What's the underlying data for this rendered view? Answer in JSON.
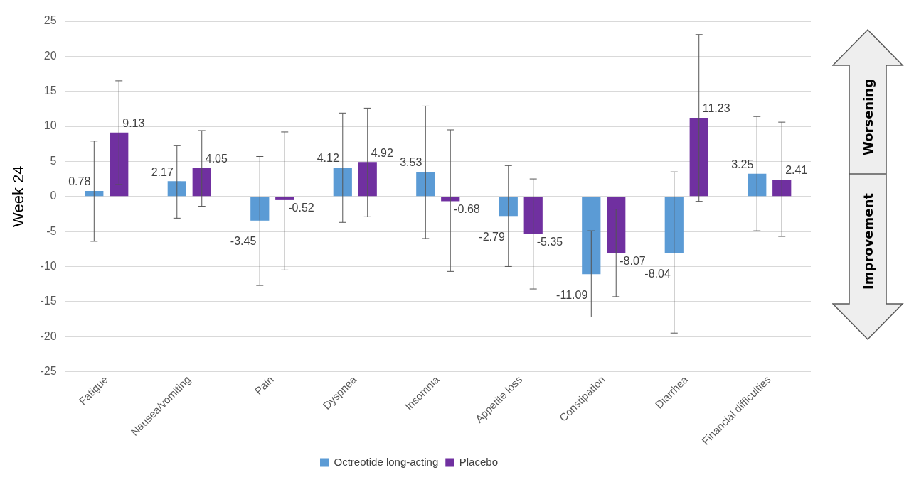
{
  "chart_data": {
    "type": "bar",
    "ylabel": "Week 24",
    "categories": [
      "Fatigue",
      "Nausea/vomiting",
      "Pain",
      "Dyspnea",
      "Insomnia",
      "Appetite loss",
      "Constipation",
      "Diarrhea",
      "Financial difficulties"
    ],
    "series": [
      {
        "name": "Octreotide long-acting",
        "color": "#5b9bd5",
        "values": [
          0.78,
          2.17,
          -3.45,
          4.12,
          3.53,
          -2.79,
          -11.09,
          -8.04,
          3.25
        ],
        "errors": [
          [
            -6.4,
            7.9
          ],
          [
            -3.1,
            7.3
          ],
          [
            -12.7,
            5.7
          ],
          [
            -3.7,
            11.9
          ],
          [
            -6.0,
            12.9
          ],
          [
            -10.0,
            4.4
          ],
          [
            -17.2,
            -4.9
          ],
          [
            -19.5,
            3.5
          ],
          [
            -4.9,
            11.4
          ]
        ]
      },
      {
        "name": "Placebo",
        "color": "#7030a0",
        "values": [
          9.13,
          4.05,
          -0.52,
          4.92,
          -0.68,
          -5.35,
          -8.07,
          11.23,
          2.41
        ],
        "errors": [
          [
            1.7,
            16.5
          ],
          [
            -1.4,
            9.4
          ],
          [
            -10.5,
            9.2
          ],
          [
            -2.9,
            12.6
          ],
          [
            -10.7,
            9.5
          ],
          [
            -13.2,
            2.5
          ],
          [
            -14.3,
            -1.8
          ],
          [
            -0.7,
            23.1
          ],
          [
            -5.7,
            10.6
          ]
        ]
      }
    ],
    "ylim": [
      -25,
      25
    ],
    "yticks": [
      -25,
      -20,
      -15,
      -10,
      -5,
      0,
      5,
      10,
      15,
      20,
      25
    ],
    "grid": "y",
    "legend": "bottom",
    "data_labels": true,
    "annotations": [
      "Worsening",
      "Improvement"
    ]
  }
}
